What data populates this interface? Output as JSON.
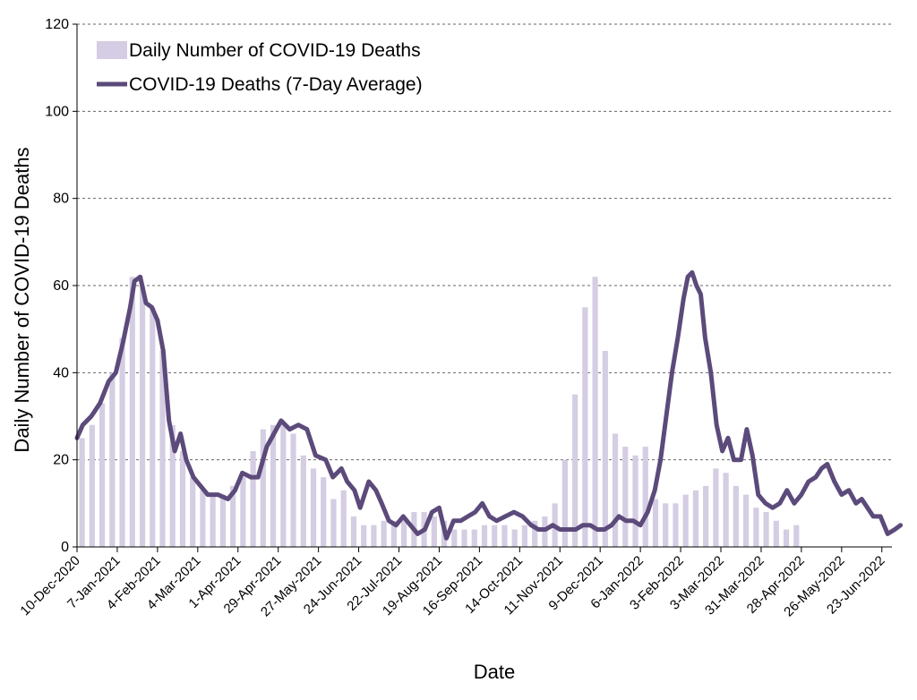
{
  "chart_data": {
    "type": "bar",
    "xlabel": "Date",
    "ylabel": "Daily Number of COVID-19 Deaths",
    "ylim": [
      0,
      120
    ],
    "y_ticks": [
      0,
      20,
      40,
      60,
      80,
      100,
      120
    ],
    "grid": "horizontal dashed",
    "legend": "top-left",
    "x_start": "2020-12-10",
    "x_end": "2022-06-30",
    "x_tick_labels": [
      "10-Dec-2020",
      "7-Jan-2021",
      "4-Feb-2021",
      "4-Mar-2021",
      "1-Apr-2021",
      "29-Apr-2021",
      "27-May-2021",
      "24-Jun-2021",
      "22-Jul-2021",
      "19-Aug-2021",
      "16-Sep-2021",
      "14-Oct-2021",
      "11-Nov-2021",
      "9-Dec-2021",
      "6-Jan-2022",
      "3-Feb-2022",
      "3-Mar-2022",
      "31-Mar-2022",
      "28-Apr-2022",
      "26-May-2022",
      "23-Jun-2022"
    ],
    "colors": {
      "bars": "#d4cde3",
      "line": "#5b4a7a",
      "grid": "#666666"
    },
    "series": [
      {
        "name": "Daily Number of COVID-19 Deaths",
        "type": "bar",
        "date_step_days": 7,
        "values": [
          25,
          28,
          33,
          40,
          48,
          62,
          60,
          55,
          45,
          28,
          22,
          16,
          13,
          12,
          12,
          14,
          16,
          22,
          27,
          28,
          28,
          26,
          21,
          18,
          16,
          11,
          13,
          7,
          5,
          5,
          6,
          6,
          7,
          8,
          8,
          7,
          6,
          4,
          4,
          4,
          5,
          5,
          5,
          4,
          5,
          6,
          7,
          10,
          20,
          35,
          55,
          62,
          45,
          26,
          23,
          21,
          23,
          11,
          10,
          10,
          12,
          13,
          14,
          18,
          17,
          14,
          12,
          9,
          8,
          6,
          4,
          5
        ]
      },
      {
        "name": "COVID-19 Deaths (7-Day Average)",
        "type": "line",
        "points": [
          [
            "2020-12-10",
            25
          ],
          [
            "2020-12-14",
            28
          ],
          [
            "2020-12-20",
            30
          ],
          [
            "2020-12-26",
            33
          ],
          [
            "2021-01-01",
            38
          ],
          [
            "2021-01-06",
            40
          ],
          [
            "2021-01-11",
            47
          ],
          [
            "2021-01-16",
            55
          ],
          [
            "2021-01-19",
            61
          ],
          [
            "2021-01-23",
            62
          ],
          [
            "2021-01-27",
            56
          ],
          [
            "2021-01-31",
            55
          ],
          [
            "2021-02-04",
            52
          ],
          [
            "2021-02-08",
            45
          ],
          [
            "2021-02-12",
            29
          ],
          [
            "2021-02-16",
            22
          ],
          [
            "2021-02-20",
            26
          ],
          [
            "2021-02-24",
            20
          ],
          [
            "2021-03-01",
            16
          ],
          [
            "2021-03-06",
            14
          ],
          [
            "2021-03-11",
            12
          ],
          [
            "2021-03-18",
            12
          ],
          [
            "2021-03-25",
            11
          ],
          [
            "2021-03-30",
            13
          ],
          [
            "2021-04-04",
            17
          ],
          [
            "2021-04-10",
            16
          ],
          [
            "2021-04-15",
            16
          ],
          [
            "2021-04-21",
            23
          ],
          [
            "2021-04-26",
            26
          ],
          [
            "2021-05-01",
            29
          ],
          [
            "2021-05-07",
            27
          ],
          [
            "2021-05-13",
            28
          ],
          [
            "2021-05-19",
            27
          ],
          [
            "2021-05-25",
            21
          ],
          [
            "2021-06-01",
            20
          ],
          [
            "2021-06-06",
            16
          ],
          [
            "2021-06-12",
            18
          ],
          [
            "2021-06-16",
            15
          ],
          [
            "2021-06-21",
            13
          ],
          [
            "2021-06-25",
            9
          ],
          [
            "2021-07-01",
            15
          ],
          [
            "2021-07-06",
            13
          ],
          [
            "2021-07-10",
            10
          ],
          [
            "2021-07-15",
            6
          ],
          [
            "2021-07-20",
            5
          ],
          [
            "2021-07-25",
            7
          ],
          [
            "2021-07-30",
            5
          ],
          [
            "2021-08-04",
            3
          ],
          [
            "2021-08-09",
            4
          ],
          [
            "2021-08-14",
            8
          ],
          [
            "2021-08-19",
            9
          ],
          [
            "2021-08-24",
            2
          ],
          [
            "2021-08-29",
            6
          ],
          [
            "2021-09-03",
            6
          ],
          [
            "2021-09-08",
            7
          ],
          [
            "2021-09-13",
            8
          ],
          [
            "2021-09-18",
            10
          ],
          [
            "2021-09-23",
            7
          ],
          [
            "2021-09-28",
            6
          ],
          [
            "2021-10-04",
            7
          ],
          [
            "2021-10-10",
            8
          ],
          [
            "2021-10-16",
            7
          ],
          [
            "2021-10-22",
            5
          ],
          [
            "2021-10-27",
            4
          ],
          [
            "2021-11-01",
            4
          ],
          [
            "2021-11-06",
            5
          ],
          [
            "2021-11-11",
            4
          ],
          [
            "2021-11-16",
            4
          ],
          [
            "2021-11-22",
            4
          ],
          [
            "2021-11-27",
            5
          ],
          [
            "2021-12-02",
            5
          ],
          [
            "2021-12-07",
            4
          ],
          [
            "2021-12-12",
            4
          ],
          [
            "2021-12-17",
            5
          ],
          [
            "2021-12-22",
            7
          ],
          [
            "2021-12-27",
            6
          ],
          [
            "2022-01-01",
            6
          ],
          [
            "2022-01-06",
            5
          ],
          [
            "2022-01-11",
            8
          ],
          [
            "2022-01-16",
            13
          ],
          [
            "2022-01-20",
            20
          ],
          [
            "2022-01-24",
            30
          ],
          [
            "2022-01-28",
            40
          ],
          [
            "2022-02-01",
            48
          ],
          [
            "2022-02-05",
            57
          ],
          [
            "2022-02-08",
            62
          ],
          [
            "2022-02-11",
            63
          ],
          [
            "2022-02-14",
            60
          ],
          [
            "2022-02-17",
            58
          ],
          [
            "2022-02-20",
            48
          ],
          [
            "2022-02-24",
            40
          ],
          [
            "2022-02-28",
            28
          ],
          [
            "2022-03-04",
            22
          ],
          [
            "2022-03-08",
            25
          ],
          [
            "2022-03-12",
            20
          ],
          [
            "2022-03-17",
            20
          ],
          [
            "2022-03-21",
            27
          ],
          [
            "2022-03-25",
            21
          ],
          [
            "2022-03-29",
            12
          ],
          [
            "2022-04-03",
            10
          ],
          [
            "2022-04-08",
            9
          ],
          [
            "2022-04-13",
            10
          ],
          [
            "2022-04-18",
            13
          ],
          [
            "2022-04-23",
            10
          ],
          [
            "2022-04-28",
            12
          ],
          [
            "2022-05-03",
            15
          ],
          [
            "2022-05-08",
            16
          ],
          [
            "2022-05-12",
            18
          ],
          [
            "2022-05-16",
            19
          ],
          [
            "2022-05-21",
            15
          ],
          [
            "2022-05-26",
            12
          ],
          [
            "2022-05-31",
            13
          ],
          [
            "2022-06-05",
            10
          ],
          [
            "2022-06-09",
            11
          ],
          [
            "2022-06-13",
            9
          ],
          [
            "2022-06-17",
            7
          ],
          [
            "2022-06-22",
            7
          ],
          [
            "2022-06-27",
            3
          ],
          [
            "2022-07-02",
            4
          ],
          [
            "2022-07-06",
            5
          ]
        ]
      }
    ]
  }
}
